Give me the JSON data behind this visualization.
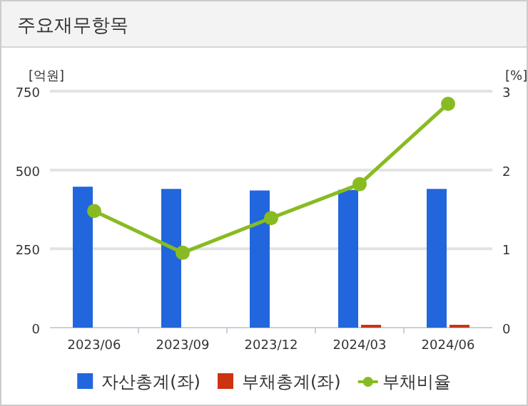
{
  "chart_data": {
    "type": "bar",
    "title": "주요재무항목",
    "ylabel": "[억원]",
    "y2label": "[%]",
    "categories": [
      "2023/06",
      "2023/09",
      "2023/12",
      "2024/03",
      "2024/06"
    ],
    "series": [
      {
        "name": "자산총계(좌)",
        "color": "#2266dd",
        "values": [
          447,
          440,
          435,
          437,
          440
        ]
      },
      {
        "name": "부채총계(좌)",
        "color": "#cc3311",
        "values": [
          null,
          null,
          null,
          9,
          9
        ]
      },
      {
        "name": "부채비율",
        "type": "line",
        "axis": "y2",
        "color": "#88bb22",
        "values": [
          1.48,
          0.95,
          1.39,
          1.82,
          2.84
        ]
      }
    ],
    "ylim": [
      0,
      750
    ],
    "yticks": [
      0,
      250,
      500,
      750
    ],
    "y2lim": [
      0,
      3
    ],
    "y2ticks": [
      0,
      1,
      2,
      3
    ],
    "grid": "y",
    "legend": "bottom",
    "marker": "circle"
  }
}
